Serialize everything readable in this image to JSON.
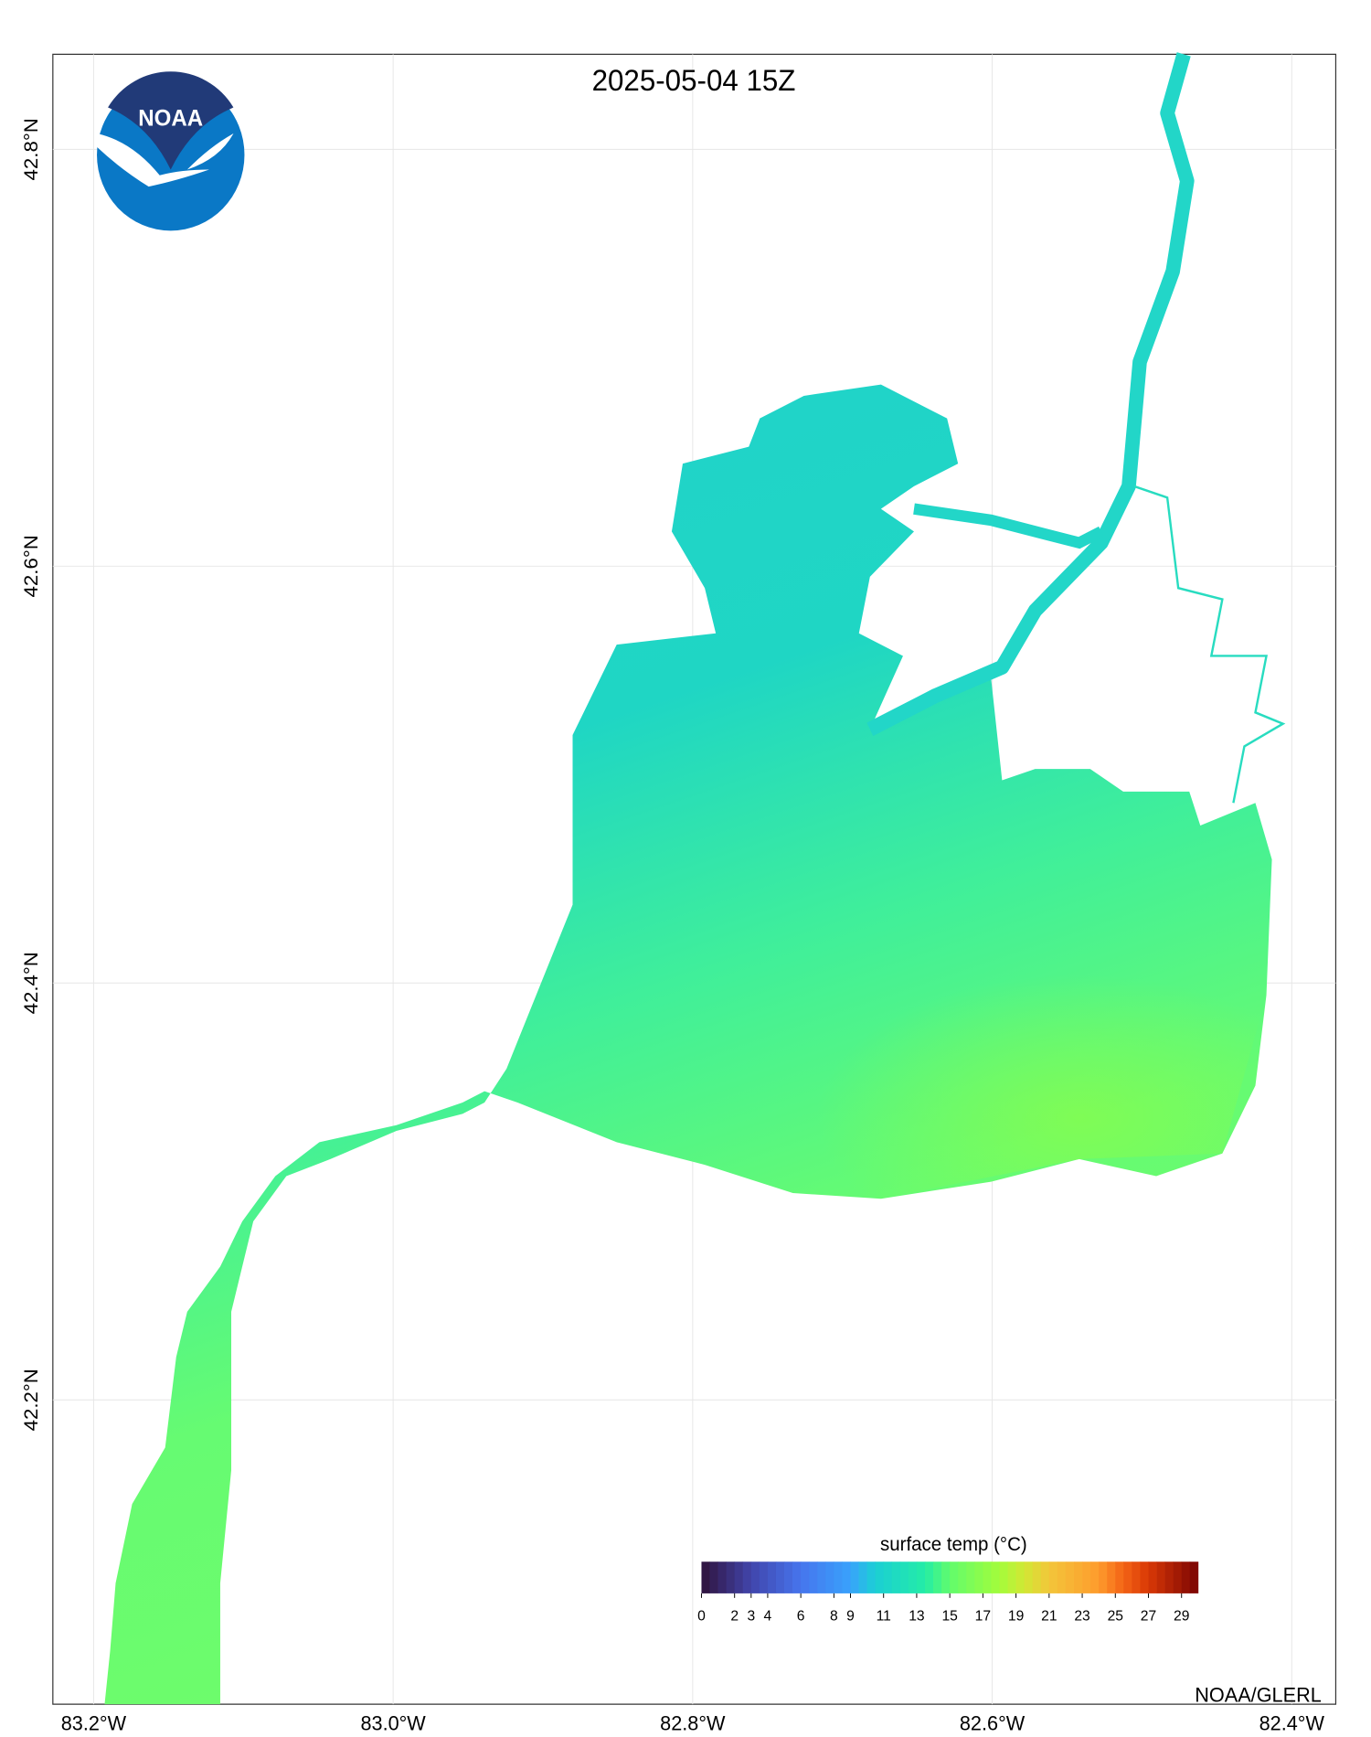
{
  "title": "2025-05-04 15Z",
  "logo_text": "NOAA",
  "credit": "NOAA/GLERL",
  "xlim": [
    -83.2272,
    -82.3706
  ],
  "ylim": [
    42.054,
    42.8456
  ],
  "xticks": [
    {
      "value": -83.2,
      "label": "83.2°W"
    },
    {
      "value": -83.0,
      "label": "83.0°W"
    },
    {
      "value": -82.8,
      "label": "82.8°W"
    },
    {
      "value": -82.6,
      "label": "82.6°W"
    },
    {
      "value": -82.4,
      "label": "82.4°W"
    }
  ],
  "yticks": [
    {
      "value": 42.2,
      "label": "42.2°N"
    },
    {
      "value": 42.4,
      "label": "42.4°N"
    },
    {
      "value": 42.6,
      "label": "42.6°N"
    },
    {
      "value": 42.8,
      "label": "42.8°N"
    }
  ],
  "colorbar": {
    "label": "surface temp (°C)",
    "range": [
      0,
      30
    ],
    "ticks": [
      0,
      2,
      3,
      4,
      6,
      8,
      9,
      11,
      13,
      15,
      17,
      19,
      21,
      23,
      25,
      27,
      29
    ]
  }
}
